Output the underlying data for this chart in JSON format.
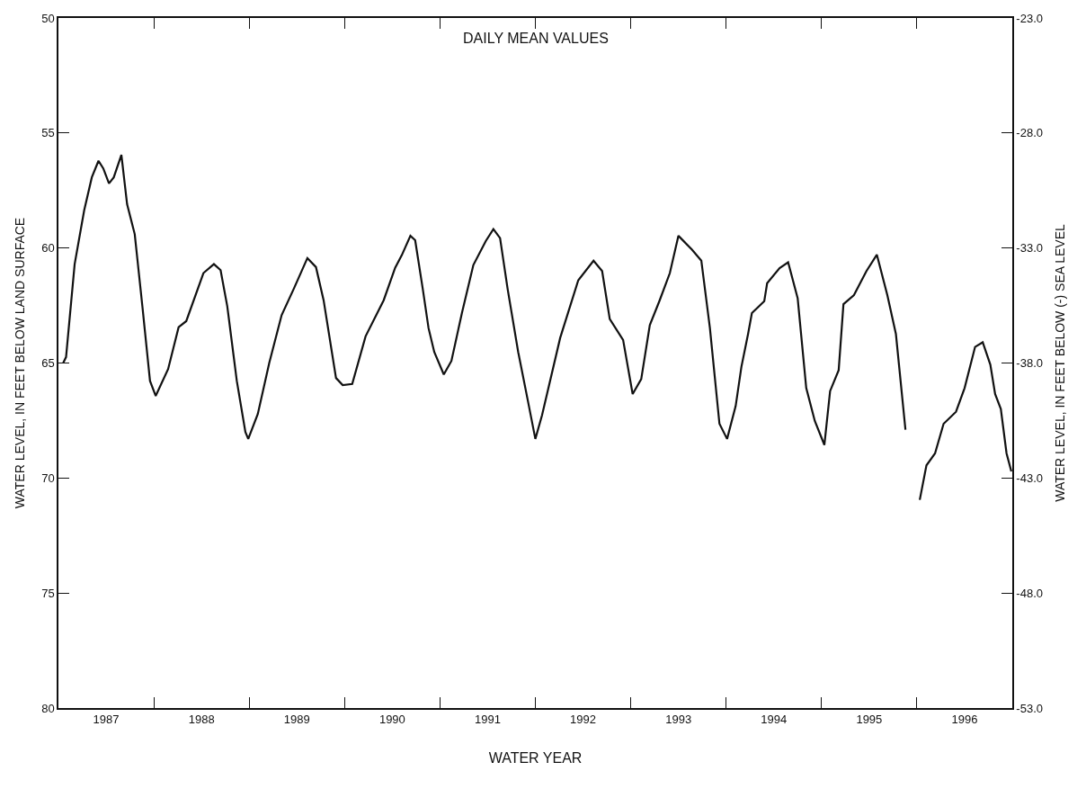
{
  "chart_data": {
    "type": "line",
    "xlabel": "WATER YEAR",
    "ylabel": "WATER LEVEL, IN FEET BELOW LAND SURFACE",
    "y2label": "WATER LEVEL, IN FEET BELOW (-) SEA LEVEL",
    "annotations": [
      "DAILY MEAN VALUES"
    ],
    "x": [
      1986.8,
      1986.83,
      1986.92,
      1987.02,
      1987.1,
      1987.17,
      1987.22,
      1987.28,
      1987.33,
      1987.41,
      1987.47,
      1987.55,
      1987.63,
      1987.71,
      1987.77,
      1987.9,
      1988.01,
      1988.09,
      1988.27,
      1988.38,
      1988.45,
      1988.52,
      1988.62,
      1988.71,
      1988.74,
      1988.84,
      1988.96,
      1989.09,
      1989.22,
      1989.36,
      1989.45,
      1989.53,
      1989.66,
      1989.73,
      1989.83,
      1989.97,
      1990.16,
      1990.28,
      1990.35,
      1990.44,
      1990.49,
      1990.57,
      1990.63,
      1990.69,
      1990.79,
      1990.87,
      1990.98,
      1991.1,
      1991.23,
      1991.31,
      1991.38,
      1991.46,
      1991.57,
      1991.67,
      1991.75,
      1991.82,
      1992.01,
      1992.2,
      1992.36,
      1992.45,
      1992.53,
      1992.67,
      1992.77,
      1992.86,
      1992.95,
      1993.05,
      1993.16,
      1993.25,
      1993.39,
      1993.49,
      1993.58,
      1993.68,
      1993.76,
      1993.85,
      1993.91,
      1993.98,
      1994.02,
      1994.15,
      1994.18,
      1994.31,
      1994.4,
      1994.5,
      1994.59,
      1994.68,
      1994.78,
      1994.84,
      1994.93,
      1994.98,
      1995.09,
      1995.22,
      1995.33,
      1995.44,
      1995.53,
      1995.63,
      1995.7,
      1995.78,
      1995.85,
      1995.94,
      1996.03,
      1996.16,
      1996.25,
      1996.36,
      1996.44,
      1996.52,
      1996.57,
      1996.63,
      1996.69,
      1996.74
    ],
    "series": [
      {
        "color": "#111111",
        "values": [
          65.0,
          64.74,
          60.7,
          58.36,
          56.93,
          56.21,
          56.54,
          57.19,
          56.93,
          55.95,
          58.1,
          59.4,
          62.53,
          65.78,
          66.43,
          65.26,
          63.44,
          63.18,
          61.09,
          60.7,
          60.96,
          62.53,
          65.78,
          68.0,
          68.3,
          67.22,
          65.0,
          62.92,
          61.75,
          60.44,
          60.83,
          62.27,
          65.65,
          65.96,
          65.91,
          63.84,
          62.27,
          60.86,
          60.31,
          59.47,
          59.66,
          61.79,
          63.48,
          64.52,
          65.5,
          64.91,
          62.83,
          60.74,
          59.7,
          59.18,
          59.57,
          61.8,
          64.52,
          66.61,
          68.3,
          67.27,
          63.91,
          61.4,
          60.55,
          61.0,
          63.09,
          64.0,
          66.35,
          65.7,
          63.35,
          62.31,
          61.09,
          59.47,
          60.06,
          60.55,
          63.48,
          67.64,
          68.3,
          66.87,
          65.17,
          63.74,
          62.83,
          62.31,
          61.53,
          60.88,
          60.62,
          62.18,
          66.09,
          67.52,
          68.56,
          66.22,
          65.31,
          62.44,
          62.05,
          61.01,
          60.29,
          62.05,
          63.74,
          67.9,
          null,
          70.95,
          69.45,
          68.93,
          67.64,
          67.12,
          66.09,
          64.3,
          64.1,
          65.07,
          66.35,
          67.0,
          68.93,
          69.71
        ]
      }
    ],
    "xlim": [
      1986.75,
      1996.75
    ],
    "xticks": [
      {
        "value": 1987.75,
        "label": null
      },
      {
        "value": 1988.75,
        "label": null
      },
      {
        "value": 1989.75,
        "label": null
      },
      {
        "value": 1990.75,
        "label": null
      },
      {
        "value": 1991.75,
        "label": null
      },
      {
        "value": 1992.75,
        "label": null
      },
      {
        "value": 1993.75,
        "label": null
      },
      {
        "value": 1994.75,
        "label": null
      },
      {
        "value": 1995.75,
        "label": null
      },
      {
        "value": 1987.25,
        "label": "1987"
      },
      {
        "value": 1988.25,
        "label": "1988"
      },
      {
        "value": 1989.25,
        "label": "1989"
      },
      {
        "value": 1990.25,
        "label": "1990"
      },
      {
        "value": 1991.25,
        "label": "1991"
      },
      {
        "value": 1992.25,
        "label": "1992"
      },
      {
        "value": 1993.25,
        "label": "1993"
      },
      {
        "value": 1994.25,
        "label": "1994"
      },
      {
        "value": 1995.25,
        "label": "1995"
      },
      {
        "value": 1996.25,
        "label": "1996"
      }
    ],
    "ylim": [
      80,
      50
    ],
    "yticks": [
      50,
      55,
      60,
      65,
      70,
      75,
      80
    ],
    "y2lim": [
      -53,
      -23
    ],
    "y2ticks": [
      {
        "value": -23,
        "label": "-23.0"
      },
      {
        "value": -28,
        "label": "-28.0"
      },
      {
        "value": -33,
        "label": "-33.0"
      },
      {
        "value": -38,
        "label": "-38.0"
      },
      {
        "value": -43,
        "label": "-43.0"
      },
      {
        "value": -48,
        "label": "-48.0"
      },
      {
        "value": -53,
        "label": "-53.0"
      }
    ],
    "line_style": "solid",
    "marker": "none"
  }
}
